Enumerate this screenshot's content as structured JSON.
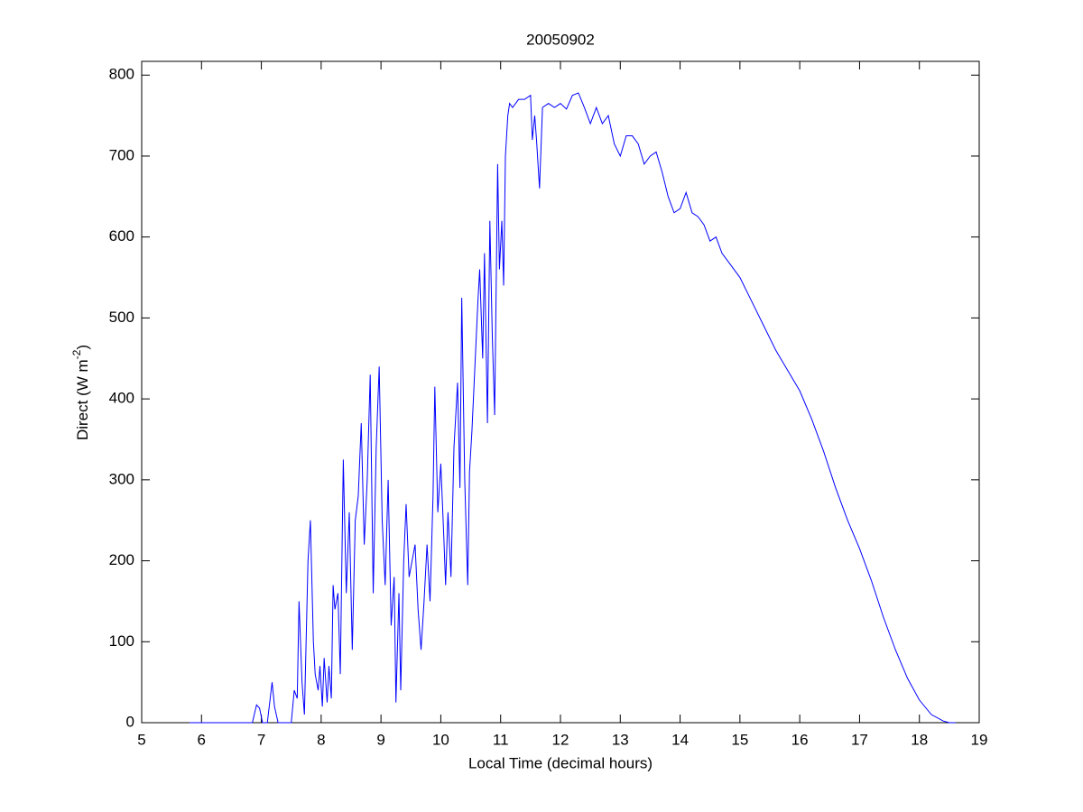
{
  "chart_data": {
    "type": "line",
    "title": "20050902",
    "xlabel": "Local Time (decimal hours)",
    "ylabel": {
      "text": "Direct (W m",
      "superscript": "-2",
      "suffix": ")"
    },
    "xlim": [
      5,
      19
    ],
    "ylim": [
      0,
      817
    ],
    "xticks": [
      5,
      6,
      7,
      8,
      9,
      10,
      11,
      12,
      13,
      14,
      15,
      16,
      17,
      18,
      19
    ],
    "yticks": [
      0,
      100,
      200,
      300,
      400,
      500,
      600,
      700,
      800
    ],
    "grid": false,
    "x": [
      5.8,
      6.0,
      6.5,
      6.85,
      6.92,
      6.97,
      7.02,
      7.1,
      7.18,
      7.22,
      7.28,
      7.5,
      7.55,
      7.6,
      7.63,
      7.68,
      7.72,
      7.78,
      7.82,
      7.87,
      7.9,
      7.95,
      7.98,
      8.02,
      8.05,
      8.1,
      8.13,
      8.17,
      8.2,
      8.23,
      8.28,
      8.32,
      8.37,
      8.42,
      8.47,
      8.52,
      8.57,
      8.62,
      8.67,
      8.72,
      8.77,
      8.82,
      8.87,
      8.92,
      8.97,
      9.02,
      9.07,
      9.12,
      9.17,
      9.22,
      9.25,
      9.3,
      9.33,
      9.38,
      9.42,
      9.47,
      9.52,
      9.57,
      9.62,
      9.67,
      9.72,
      9.77,
      9.82,
      9.87,
      9.9,
      9.95,
      10.0,
      10.05,
      10.08,
      10.12,
      10.17,
      10.22,
      10.28,
      10.32,
      10.35,
      10.4,
      10.45,
      10.48,
      10.52,
      10.57,
      10.62,
      10.65,
      10.7,
      10.73,
      10.78,
      10.82,
      10.86,
      10.9,
      10.95,
      10.98,
      11.02,
      11.05,
      11.08,
      11.12,
      11.15,
      11.2,
      11.3,
      11.4,
      11.5,
      11.53,
      11.57,
      11.6,
      11.65,
      11.7,
      11.8,
      11.9,
      12.0,
      12.1,
      12.2,
      12.3,
      12.4,
      12.5,
      12.6,
      12.7,
      12.8,
      12.9,
      13.0,
      13.1,
      13.2,
      13.3,
      13.4,
      13.5,
      13.6,
      13.7,
      13.8,
      13.9,
      14.0,
      14.1,
      14.2,
      14.3,
      14.4,
      14.5,
      14.6,
      14.7,
      14.8,
      14.9,
      15.0,
      15.2,
      15.4,
      15.6,
      15.8,
      16.0,
      16.2,
      16.4,
      16.6,
      16.8,
      17.0,
      17.2,
      17.4,
      17.6,
      17.8,
      18.0,
      18.2,
      18.4,
      18.5,
      18.6
    ],
    "series": [
      {
        "name": "Direct",
        "color": "#0000ff",
        "values": [
          0,
          0,
          0,
          0,
          22,
          18,
          0,
          0,
          50,
          20,
          0,
          0,
          40,
          30,
          150,
          50,
          10,
          200,
          250,
          100,
          60,
          40,
          70,
          20,
          80,
          25,
          70,
          30,
          170,
          140,
          160,
          60,
          325,
          160,
          260,
          90,
          250,
          280,
          370,
          220,
          300,
          430,
          160,
          340,
          440,
          250,
          170,
          300,
          120,
          180,
          25,
          160,
          40,
          200,
          270,
          180,
          200,
          220,
          140,
          90,
          150,
          220,
          150,
          280,
          415,
          260,
          320,
          230,
          170,
          260,
          180,
          340,
          420,
          290,
          525,
          300,
          170,
          310,
          360,
          440,
          520,
          560,
          450,
          580,
          370,
          620,
          480,
          380,
          690,
          560,
          620,
          540,
          700,
          750,
          765,
          760,
          770,
          770,
          775,
          720,
          750,
          720,
          660,
          760,
          765,
          760,
          765,
          758,
          775,
          778,
          760,
          740,
          760,
          740,
          750,
          715,
          700,
          725,
          725,
          715,
          690,
          700,
          705,
          680,
          650,
          630,
          635,
          655,
          630,
          625,
          615,
          595,
          600,
          580,
          570,
          560,
          550,
          520,
          490,
          460,
          435,
          410,
          375,
          335,
          290,
          250,
          215,
          175,
          130,
          90,
          55,
          28,
          10,
          2,
          0,
          0
        ]
      }
    ]
  }
}
